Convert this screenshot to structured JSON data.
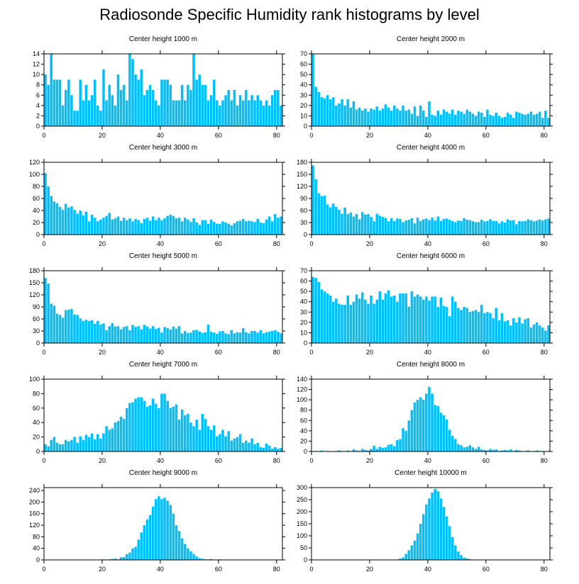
{
  "figure_title": "Radiosonde Specific Humidity rank histograms by level",
  "bar_color": "#00bfff",
  "chart_data": [
    {
      "type": "bar",
      "title": "Center height 1000 m",
      "xlim": [
        0,
        82
      ],
      "ylim": [
        0,
        14
      ],
      "xticks": [
        0,
        20,
        40,
        60,
        80
      ],
      "yticks": [
        0,
        2,
        4,
        6,
        8,
        10,
        12,
        14
      ],
      "values": [
        10,
        8,
        14,
        9,
        9,
        9,
        4,
        7,
        9,
        6,
        3,
        3,
        9,
        5,
        8,
        5,
        6,
        9,
        4,
        3,
        11,
        5,
        8,
        6,
        4,
        10,
        7,
        8,
        5,
        14,
        13,
        10,
        9,
        11,
        6,
        7,
        8,
        7,
        5,
        4,
        9,
        9,
        9,
        8,
        5,
        5,
        5,
        8,
        5,
        8,
        7,
        14,
        9,
        10,
        8,
        8,
        5,
        6,
        9,
        5,
        4,
        5,
        6,
        7,
        5,
        7,
        4,
        6,
        5,
        7,
        5,
        6,
        5,
        6,
        5,
        4,
        5,
        4,
        6,
        7,
        7,
        4
      ]
    },
    {
      "type": "bar",
      "title": "Center height 2000 m",
      "xlim": [
        0,
        82
      ],
      "ylim": [
        0,
        70
      ],
      "xticks": [
        0,
        20,
        40,
        60,
        80
      ],
      "yticks": [
        0,
        10,
        20,
        30,
        40,
        50,
        60,
        70
      ],
      "values": [
        70,
        38,
        33,
        28,
        27,
        30,
        26,
        28,
        20,
        22,
        26,
        20,
        26,
        18,
        24,
        16,
        18,
        15,
        17,
        14,
        17,
        16,
        19,
        15,
        17,
        21,
        18,
        15,
        20,
        17,
        15,
        20,
        15,
        16,
        12,
        19,
        10,
        20,
        15,
        9,
        24,
        11,
        10,
        15,
        11,
        16,
        14,
        12,
        16,
        11,
        15,
        14,
        12,
        16,
        14,
        12,
        10,
        14,
        13,
        9,
        16,
        11,
        10,
        13,
        10,
        8,
        9,
        13,
        11,
        8,
        14,
        13,
        12,
        11,
        12,
        14,
        11,
        12,
        14,
        8,
        15,
        8
      ]
    },
    {
      "type": "bar",
      "title": "Center height 3000 m",
      "xlim": [
        0,
        82
      ],
      "ylim": [
        0,
        120
      ],
      "xticks": [
        0,
        20,
        40,
        60,
        80
      ],
      "yticks": [
        0,
        20,
        40,
        60,
        80,
        100,
        120
      ],
      "values": [
        102,
        80,
        64,
        55,
        52,
        46,
        41,
        51,
        45,
        47,
        41,
        35,
        40,
        32,
        38,
        22,
        33,
        28,
        22,
        25,
        28,
        31,
        36,
        25,
        27,
        30,
        23,
        28,
        24,
        27,
        22,
        26,
        24,
        19,
        26,
        28,
        23,
        30,
        24,
        28,
        24,
        27,
        31,
        33,
        31,
        27,
        28,
        22,
        28,
        25,
        21,
        27,
        20,
        16,
        24,
        24,
        18,
        25,
        21,
        18,
        18,
        22,
        20,
        18,
        15,
        19,
        22,
        23,
        26,
        22,
        23,
        22,
        21,
        26,
        20,
        19,
        25,
        30,
        22,
        34,
        28,
        30
      ]
    },
    {
      "type": "bar",
      "title": "Center height 4000 m",
      "xlim": [
        0,
        82
      ],
      "ylim": [
        0,
        180
      ],
      "xticks": [
        0,
        20,
        40,
        60,
        80
      ],
      "yticks": [
        0,
        30,
        60,
        90,
        120,
        150,
        180
      ],
      "values": [
        172,
        138,
        103,
        96,
        97,
        75,
        68,
        77,
        69,
        62,
        52,
        67,
        51,
        55,
        45,
        51,
        38,
        56,
        50,
        51,
        44,
        33,
        52,
        47,
        44,
        41,
        33,
        41,
        34,
        40,
        39,
        31,
        35,
        37,
        41,
        28,
        42,
        34,
        38,
        40,
        36,
        42,
        35,
        45,
        34,
        39,
        40,
        37,
        34,
        31,
        35,
        34,
        41,
        37,
        36,
        33,
        31,
        31,
        37,
        33,
        34,
        38,
        34,
        34,
        28,
        33,
        30,
        38,
        35,
        36,
        26,
        34,
        33,
        34,
        38,
        36,
        33,
        35,
        38,
        35,
        38,
        40
      ]
    },
    {
      "type": "bar",
      "title": "Center height 5000 m",
      "xlim": [
        0,
        82
      ],
      "ylim": [
        0,
        180
      ],
      "xticks": [
        0,
        20,
        40,
        60,
        80
      ],
      "yticks": [
        0,
        30,
        60,
        90,
        120,
        150,
        180
      ],
      "values": [
        162,
        148,
        98,
        93,
        73,
        70,
        63,
        82,
        83,
        85,
        71,
        70,
        61,
        55,
        58,
        55,
        57,
        48,
        55,
        46,
        49,
        32,
        42,
        50,
        41,
        42,
        34,
        40,
        42,
        32,
        45,
        40,
        42,
        34,
        45,
        41,
        36,
        42,
        35,
        38,
        26,
        40,
        37,
        34,
        41,
        36,
        42,
        24,
        30,
        25,
        26,
        32,
        33,
        29,
        25,
        27,
        46,
        28,
        26,
        23,
        29,
        30,
        24,
        22,
        32,
        24,
        27,
        26,
        37,
        27,
        24,
        30,
        30,
        26,
        32,
        24,
        27,
        28,
        30,
        32,
        28,
        24
      ]
    },
    {
      "type": "bar",
      "title": "Center height 6000 m",
      "xlim": [
        0,
        82
      ],
      "ylim": [
        0,
        70
      ],
      "xticks": [
        0,
        20,
        40,
        60,
        80
      ],
      "yticks": [
        0,
        10,
        20,
        30,
        40,
        50,
        60,
        70
      ],
      "values": [
        64,
        63,
        59,
        52,
        50,
        48,
        46,
        40,
        43,
        38,
        37,
        37,
        46,
        37,
        40,
        47,
        43,
        49,
        42,
        38,
        46,
        38,
        42,
        50,
        42,
        48,
        51,
        45,
        46,
        40,
        48,
        48,
        48,
        35,
        50,
        45,
        47,
        45,
        42,
        45,
        41,
        45,
        45,
        35,
        44,
        36,
        35,
        26,
        45,
        40,
        34,
        32,
        35,
        34,
        30,
        31,
        32,
        30,
        37,
        29,
        30,
        29,
        24,
        34,
        22,
        29,
        21,
        22,
        17,
        24,
        20,
        25,
        19,
        23,
        24,
        15,
        18,
        20,
        17,
        15,
        12,
        17
      ]
    },
    {
      "type": "bar",
      "title": "Center height 7000 m",
      "xlim": [
        0,
        82
      ],
      "ylim": [
        0,
        100
      ],
      "xticks": [
        0,
        20,
        40,
        60,
        80
      ],
      "yticks": [
        0,
        20,
        40,
        60,
        80,
        100
      ],
      "values": [
        10,
        7,
        16,
        20,
        12,
        10,
        10,
        16,
        14,
        16,
        20,
        12,
        21,
        16,
        23,
        20,
        25,
        17,
        24,
        18,
        25,
        35,
        30,
        32,
        40,
        42,
        48,
        45,
        60,
        67,
        68,
        73,
        75,
        75,
        70,
        62,
        64,
        73,
        66,
        60,
        80,
        80,
        70,
        60,
        62,
        65,
        44,
        58,
        50,
        52,
        40,
        35,
        44,
        30,
        52,
        45,
        35,
        30,
        36,
        21,
        24,
        30,
        21,
        28,
        15,
        18,
        20,
        24,
        12,
        15,
        12,
        18,
        10,
        12,
        6,
        5,
        11,
        8,
        4,
        6,
        4,
        5
      ]
    },
    {
      "type": "bar",
      "title": "Center height 8000 m",
      "xlim": [
        0,
        82
      ],
      "ylim": [
        0,
        140
      ],
      "xticks": [
        0,
        20,
        40,
        60,
        80
      ],
      "yticks": [
        0,
        20,
        40,
        60,
        80,
        100,
        120,
        140
      ],
      "values": [
        0,
        1,
        0,
        2,
        0,
        1,
        0,
        0,
        1,
        2,
        1,
        0,
        2,
        0,
        4,
        2,
        1,
        5,
        3,
        2,
        5,
        11,
        5,
        9,
        7,
        8,
        13,
        14,
        10,
        22,
        24,
        45,
        40,
        60,
        80,
        95,
        100,
        105,
        100,
        112,
        125,
        112,
        90,
        88,
        75,
        70,
        62,
        42,
        30,
        24,
        14,
        12,
        8,
        9,
        12,
        8,
        5,
        9,
        4,
        3,
        2,
        5,
        3,
        4,
        1,
        2,
        3,
        2,
        4,
        1,
        3,
        2,
        0,
        1,
        2,
        0,
        1,
        2,
        1,
        1,
        0,
        1
      ]
    },
    {
      "type": "bar",
      "title": "Center height 9000 m",
      "xlim": [
        0,
        82
      ],
      "ylim": [
        0,
        250
      ],
      "xticks": [
        0,
        20,
        40,
        60,
        80
      ],
      "yticks": [
        0,
        40,
        80,
        120,
        160,
        200,
        240
      ],
      "values": [
        0,
        0,
        0,
        0,
        0,
        0,
        0,
        0,
        0,
        0,
        0,
        0,
        0,
        0,
        0,
        0,
        0,
        0,
        0,
        0,
        2,
        1,
        2,
        3,
        5,
        2,
        9,
        10,
        20,
        25,
        40,
        45,
        70,
        95,
        120,
        140,
        155,
        185,
        210,
        220,
        210,
        215,
        205,
        190,
        160,
        120,
        100,
        75,
        55,
        40,
        30,
        20,
        12,
        6,
        4,
        2,
        2,
        3,
        1,
        1,
        2,
        1,
        1,
        1,
        0,
        0,
        1,
        0,
        0,
        0,
        0,
        0,
        0,
        1,
        0,
        0,
        0,
        0,
        0,
        0,
        0,
        0
      ]
    },
    {
      "type": "bar",
      "title": "Center height 10000 m",
      "xlim": [
        0,
        82
      ],
      "ylim": [
        0,
        300
      ],
      "xticks": [
        0,
        20,
        40,
        60,
        80
      ],
      "yticks": [
        0,
        50,
        100,
        150,
        200,
        250,
        300
      ],
      "values": [
        0,
        0,
        0,
        0,
        0,
        0,
        0,
        0,
        0,
        0,
        0,
        0,
        0,
        0,
        0,
        0,
        0,
        0,
        0,
        0,
        0,
        0,
        0,
        0,
        0,
        0,
        0,
        1,
        1,
        2,
        5,
        10,
        25,
        40,
        60,
        80,
        110,
        150,
        190,
        230,
        255,
        280,
        295,
        285,
        255,
        220,
        180,
        140,
        95,
        60,
        35,
        20,
        10,
        6,
        3,
        2,
        1,
        1,
        0,
        0,
        0,
        0,
        0,
        0,
        0,
        0,
        0,
        0,
        0,
        0,
        0,
        0,
        0,
        0,
        0,
        0,
        0,
        0,
        0,
        0,
        0,
        0
      ]
    }
  ]
}
